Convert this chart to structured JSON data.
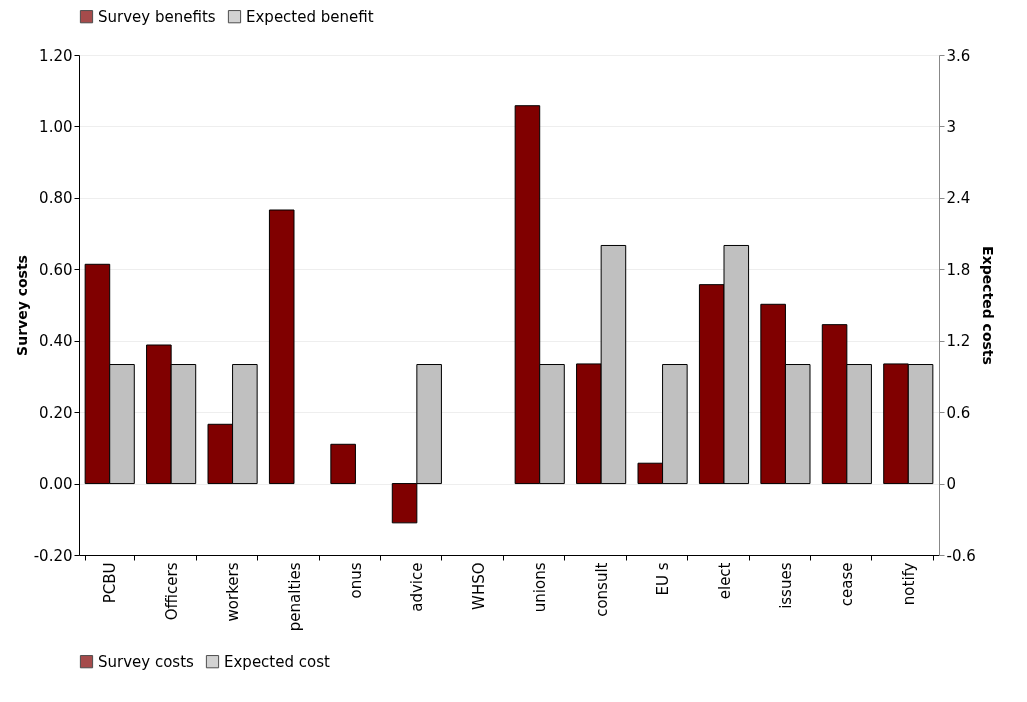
{
  "chart_data": {
    "type": "bar",
    "ylabel": "Survey costs",
    "y2label": "Expected costs",
    "categories": [
      "PCBU",
      "Officers",
      "workers",
      "penalties",
      "onus",
      "advice",
      "WHSO",
      "unions",
      "consult",
      "EU s",
      "elect",
      "issues",
      "cease",
      "notify"
    ],
    "series": [
      {
        "name": "Survey benefits",
        "color": "#800000",
        "values": [
          null,
          null,
          null,
          null,
          null,
          null,
          null,
          null,
          null,
          null,
          null,
          null,
          null,
          null
        ]
      },
      {
        "name": "Expected benefit",
        "color": "#c0c0c0",
        "axis": "y2",
        "values": [
          null,
          null,
          null,
          null,
          null,
          null,
          null,
          null,
          null,
          null,
          null,
          null,
          null,
          null
        ]
      },
      {
        "name": "Survey costs",
        "color": "#800000",
        "values": [
          0.614,
          0.388,
          0.166,
          0.766,
          0.11,
          -0.11,
          null,
          1.058,
          0.335,
          0.057,
          0.557,
          0.502,
          0.445,
          0.335
        ]
      },
      {
        "name": "Expected cost",
        "color": "#c0c0c0",
        "axis": "y2",
        "values": [
          1,
          1,
          1,
          null,
          null,
          1,
          null,
          1,
          2,
          1,
          2,
          1,
          1,
          1
        ]
      }
    ],
    "ylim": [
      -0.2,
      1.2
    ],
    "yticks": [
      {
        "value": -0.2,
        "label": "-0.20"
      },
      {
        "value": 0,
        "label": "0.00"
      },
      {
        "value": 0.2,
        "label": "0.20"
      },
      {
        "value": 0.4,
        "label": "0.40"
      },
      {
        "value": 0.6,
        "label": "0.60"
      },
      {
        "value": 0.8,
        "label": "0.80"
      },
      {
        "value": 1,
        "label": "1.00"
      },
      {
        "value": 1.2,
        "label": "1.20"
      }
    ],
    "y2lim": [
      -0.6,
      3.6
    ],
    "y2ticks": [
      -0.6,
      0,
      0.6,
      1.2,
      1.8,
      2.4,
      3,
      3.6
    ],
    "grid": "y",
    "legend": "bottom"
  }
}
